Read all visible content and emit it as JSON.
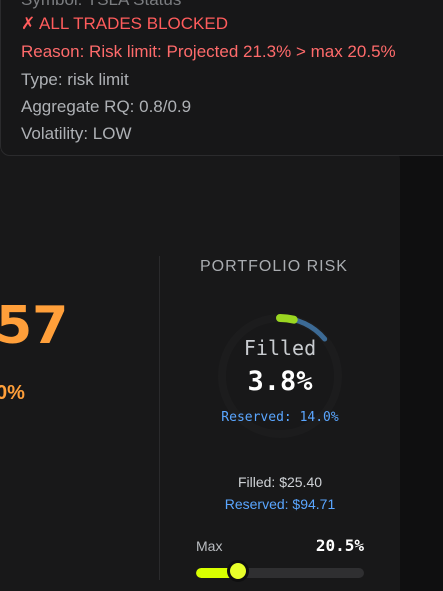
{
  "alert": {
    "cutoff_text": "Symbol: TSLA Status",
    "title": "✗ ALL TRADES BLOCKED",
    "reason": "Reason: Risk limit: Projected 21.3% > max 20.5%",
    "type": "Type: risk limit",
    "aggregate": "Aggregate RQ: 0.8/0.9",
    "volatility": "Volatility: LOW",
    "colors": {
      "danger": "#ff5c5c",
      "muted": "#aeb1b5"
    }
  },
  "left_stat": {
    "big_value": "57",
    "small_value": "0%"
  },
  "portfolio_risk": {
    "title": "PORTFOLIO RISK",
    "gauge": {
      "filled_label": "Filled",
      "filled_value": "3.8%",
      "reserved_text": "Reserved: 14.0%",
      "filled_fraction": 0.038,
      "reserved_fraction": 0.14,
      "colors": {
        "filled": "#9ad621",
        "reserved": "#3c6a95",
        "track": "#1c1c1d"
      }
    },
    "filled_amount": "Filled: $25.40",
    "reserved_amount": "Reserved: $94.71",
    "max": {
      "label": "Max",
      "value": "20.5%",
      "slider_fraction": 0.25,
      "colors": {
        "fill": "#d8ff00",
        "thumb": "#e8ff2a"
      }
    }
  }
}
